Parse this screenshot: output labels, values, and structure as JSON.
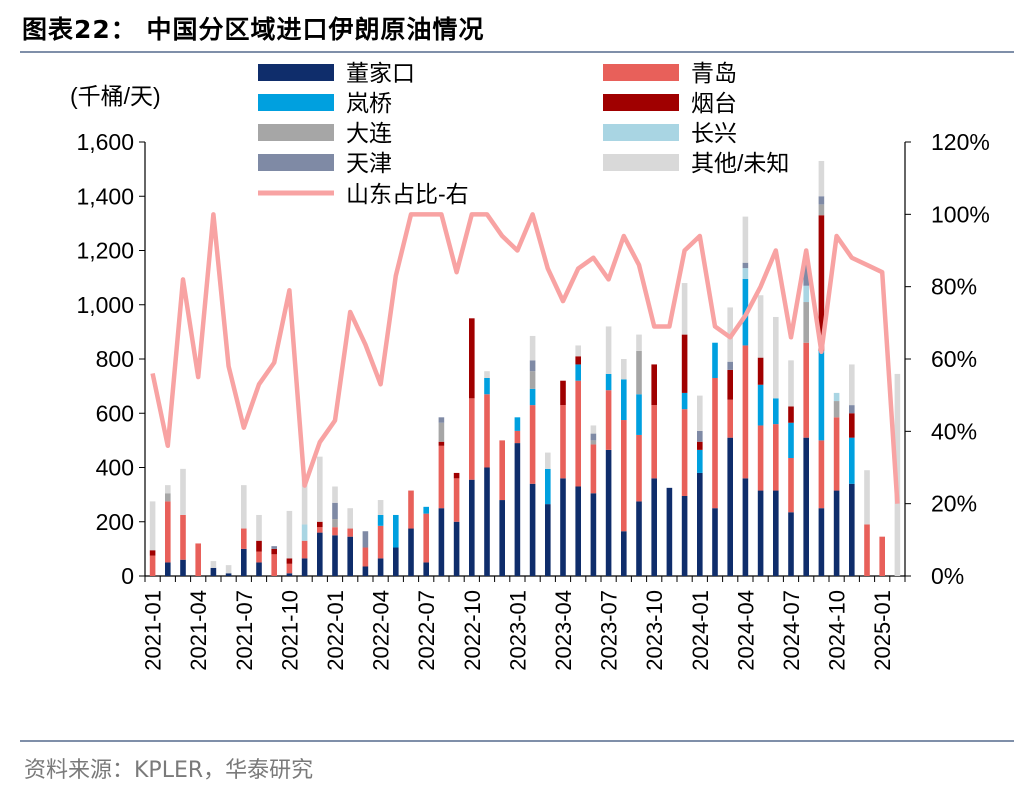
{
  "title": "图表22：  中国分区域进口伊朗原油情况",
  "source": "资料来源：KPLER，华泰研究",
  "colors": {
    "rule": "#7f8fa9",
    "line": "#f8a3a3"
  },
  "chart_data": {
    "type": "bar",
    "stacked": true,
    "y_unit_label": "(千桶/天)",
    "ylim": [
      0,
      1600
    ],
    "y_ticks": [
      0,
      200,
      400,
      600,
      800,
      1000,
      1200,
      1400,
      1600
    ],
    "y_tick_labels": [
      "0",
      "200",
      "400",
      "600",
      "800",
      "1,000",
      "1,200",
      "1,400",
      "1,600"
    ],
    "y2lim": [
      0,
      1.2
    ],
    "y2_ticks": [
      0,
      0.2,
      0.4,
      0.6,
      0.8,
      1.0,
      1.2
    ],
    "y2_tick_labels": [
      "0%",
      "20%",
      "40%",
      "60%",
      "80%",
      "100%",
      "120%"
    ],
    "categories": [
      "2021-01",
      "2021-02",
      "2021-03",
      "2021-04",
      "2021-05",
      "2021-06",
      "2021-07",
      "2021-08",
      "2021-09",
      "2021-10",
      "2021-11",
      "2021-12",
      "2022-01",
      "2022-02",
      "2022-03",
      "2022-04",
      "2022-05",
      "2022-06",
      "2022-07",
      "2022-08",
      "2022-09",
      "2022-10",
      "2022-11",
      "2022-12",
      "2023-01",
      "2023-02",
      "2023-03",
      "2023-04",
      "2023-05",
      "2023-06",
      "2023-07",
      "2023-08",
      "2023-09",
      "2023-10",
      "2023-11",
      "2023-12",
      "2024-01",
      "2024-02",
      "2024-03",
      "2024-04",
      "2024-05",
      "2024-06",
      "2024-07",
      "2024-08",
      "2024-09",
      "2024-10",
      "2024-11",
      "2024-12",
      "2025-01",
      "2025-02"
    ],
    "x_tick_labels": [
      "2021-01",
      "2021-04",
      "2021-07",
      "2021-10",
      "2022-01",
      "2022-04",
      "2022-07",
      "2022-10",
      "2023-01",
      "2023-04",
      "2023-07",
      "2023-10",
      "2024-01",
      "2024-04",
      "2024-07",
      "2024-10",
      "2025-01"
    ],
    "legend_placement": "top-center",
    "series": [
      {
        "name": "董家口",
        "color": "#0f2d6b",
        "values": [
          0,
          50,
          60,
          0,
          30,
          10,
          100,
          50,
          0,
          10,
          65,
          160,
          150,
          145,
          35,
          65,
          105,
          175,
          50,
          250,
          200,
          355,
          400,
          280,
          490,
          340,
          265,
          360,
          330,
          305,
          465,
          165,
          275,
          360,
          325,
          295,
          380,
          250,
          510,
          360,
          315,
          315,
          235,
          510,
          250,
          315,
          340,
          0,
          0,
          0
        ]
      },
      {
        "name": "青岛",
        "color": "#e8605a",
        "values": [
          75,
          225,
          165,
          120,
          0,
          0,
          75,
          40,
          80,
          35,
          65,
          20,
          30,
          30,
          70,
          120,
          0,
          140,
          180,
          230,
          160,
          300,
          270,
          220,
          45,
          290,
          0,
          270,
          390,
          180,
          220,
          410,
          245,
          270,
          0,
          320,
          0,
          480,
          140,
          490,
          240,
          245,
          200,
          350,
          250,
          270,
          0,
          190,
          145,
          0
        ]
      },
      {
        "name": "岚桥",
        "color": "#00a0df",
        "values": [
          0,
          0,
          0,
          0,
          0,
          0,
          0,
          0,
          0,
          0,
          0,
          0,
          0,
          0,
          0,
          40,
          120,
          0,
          25,
          0,
          0,
          0,
          60,
          0,
          50,
          60,
          130,
          0,
          60,
          0,
          60,
          150,
          150,
          0,
          0,
          60,
          85,
          130,
          0,
          245,
          150,
          95,
          130,
          0,
          330,
          0,
          170,
          0,
          0,
          0
        ]
      },
      {
        "name": "烟台",
        "color": "#a00000",
        "values": [
          20,
          0,
          0,
          0,
          0,
          0,
          0,
          40,
          20,
          20,
          0,
          20,
          0,
          0,
          0,
          0,
          0,
          0,
          0,
          15,
          20,
          295,
          0,
          0,
          0,
          0,
          0,
          90,
          30,
          0,
          0,
          0,
          0,
          150,
          0,
          215,
          30,
          0,
          110,
          0,
          100,
          0,
          60,
          0,
          500,
          0,
          90,
          0,
          0,
          0
        ]
      },
      {
        "name": "大连",
        "color": "#a6a6a6",
        "values": [
          0,
          30,
          0,
          0,
          0,
          0,
          0,
          0,
          0,
          0,
          0,
          0,
          30,
          0,
          0,
          0,
          0,
          0,
          0,
          70,
          0,
          0,
          0,
          0,
          0,
          65,
          0,
          0,
          0,
          15,
          0,
          0,
          160,
          0,
          0,
          0,
          0,
          0,
          0,
          0,
          0,
          0,
          0,
          150,
          40,
          60,
          0,
          0,
          0,
          0
        ]
      },
      {
        "name": "长兴",
        "color": "#a9d5e3",
        "values": [
          0,
          0,
          0,
          0,
          0,
          0,
          0,
          0,
          0,
          0,
          60,
          0,
          0,
          0,
          0,
          0,
          0,
          0,
          0,
          0,
          0,
          0,
          0,
          0,
          0,
          0,
          0,
          0,
          0,
          0,
          0,
          0,
          0,
          0,
          0,
          0,
          0,
          0,
          0,
          40,
          0,
          0,
          0,
          60,
          0,
          30,
          0,
          0,
          0,
          0
        ]
      },
      {
        "name": "天津",
        "color": "#7f8aa5",
        "values": [
          0,
          0,
          0,
          0,
          0,
          0,
          0,
          0,
          10,
          0,
          0,
          0,
          60,
          0,
          60,
          0,
          0,
          0,
          0,
          20,
          0,
          0,
          0,
          0,
          0,
          40,
          0,
          0,
          0,
          25,
          0,
          0,
          0,
          0,
          0,
          0,
          40,
          0,
          30,
          20,
          0,
          0,
          0,
          100,
          30,
          0,
          30,
          0,
          0,
          0
        ]
      },
      {
        "name": "其他/未知",
        "color": "#d9d9d9",
        "values": [
          180,
          30,
          170,
          0,
          25,
          30,
          160,
          95,
          0,
          175,
          170,
          240,
          60,
          75,
          0,
          55,
          0,
          0,
          0,
          0,
          0,
          0,
          25,
          0,
          0,
          90,
          60,
          0,
          40,
          30,
          175,
          75,
          60,
          0,
          0,
          190,
          130,
          0,
          200,
          170,
          230,
          300,
          170,
          0,
          130,
          0,
          150,
          200,
          0,
          745
        ]
      }
    ],
    "line": {
      "name": "山东占比-右",
      "color": "#f8a3a3",
      "values": [
        0.56,
        0.36,
        0.82,
        0.55,
        1.0,
        0.58,
        0.41,
        0.53,
        0.59,
        0.79,
        0.25,
        0.37,
        0.43,
        0.73,
        0.64,
        0.53,
        0.83,
        1.0,
        1.0,
        1.0,
        0.84,
        1.0,
        1.0,
        0.94,
        0.9,
        1.0,
        0.85,
        0.76,
        0.85,
        0.88,
        0.82,
        0.94,
        0.86,
        0.69,
        0.69,
        0.9,
        0.94,
        0.69,
        0.66,
        0.72,
        0.8,
        0.9,
        0.66,
        0.9,
        0.62,
        0.94,
        0.88,
        0.86,
        0.84,
        0.2
      ]
    }
  }
}
